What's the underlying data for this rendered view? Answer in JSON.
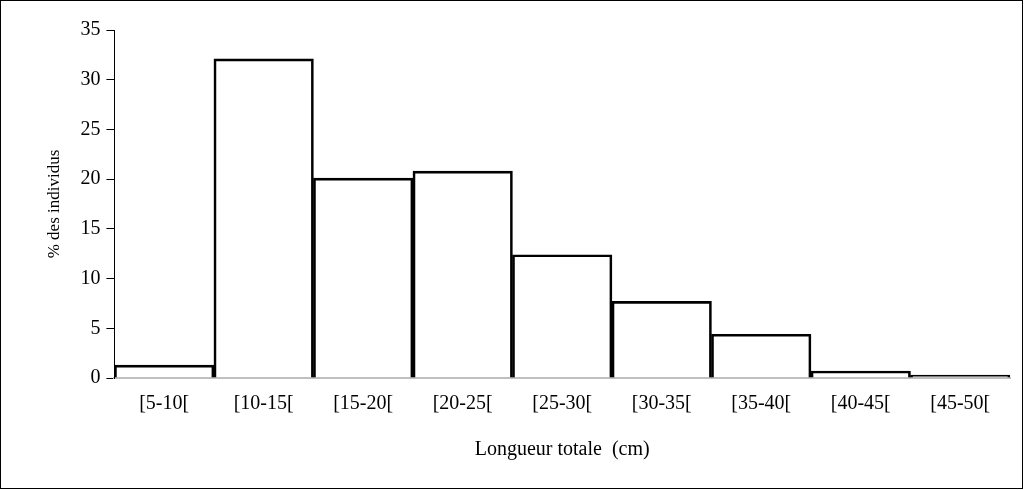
{
  "chart_data": {
    "type": "bar",
    "xlabel": "Longueur totale  (cm)",
    "ylabel": "% des individus",
    "categories": [
      "[5-10[",
      "[10-15[",
      "[15-20[",
      "[20-25[",
      "[25-30[",
      "[30-35[",
      "[35-40[",
      "[40-45[",
      "[45-50["
    ],
    "values": [
      1.3,
      32.1,
      20.1,
      20.8,
      12.4,
      7.7,
      4.4,
      0.7,
      0.3
    ],
    "color": "#000000",
    "ylim": [
      0,
      35
    ],
    "yticks": [
      0,
      5,
      10,
      15,
      20,
      25,
      30,
      35
    ],
    "grid": false,
    "legend": false
  }
}
